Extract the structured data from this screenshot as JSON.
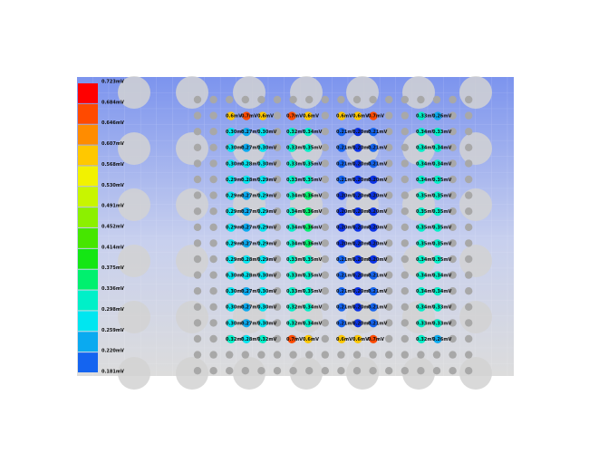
{
  "legend": {
    "ticks": [
      {
        "value": 0.723,
        "label": "0.723mV"
      },
      {
        "value": 0.684,
        "label": "0.684mV"
      },
      {
        "value": 0.646,
        "label": "0.646mV"
      },
      {
        "value": 0.607,
        "label": "0.607mV"
      },
      {
        "value": 0.568,
        "label": "0.568mV"
      },
      {
        "value": 0.53,
        "label": "0.530mV"
      },
      {
        "value": 0.491,
        "label": "0.491mV"
      },
      {
        "value": 0.452,
        "label": "0.452mV"
      },
      {
        "value": 0.414,
        "label": "0.414mV"
      },
      {
        "value": 0.375,
        "label": "0.375mV"
      },
      {
        "value": 0.336,
        "label": "0.336mV"
      },
      {
        "value": 0.298,
        "label": "0.298mV"
      },
      {
        "value": 0.259,
        "label": "0.259mV"
      },
      {
        "value": 0.22,
        "label": "0.220mV"
      },
      {
        "value": 0.181,
        "label": "0.181mV"
      }
    ],
    "colors": [
      "#ff0000",
      "#ff4a00",
      "#ff8c00",
      "#ffc800",
      "#f2f200",
      "#c8f500",
      "#8cf000",
      "#46e600",
      "#14e614",
      "#00f06e",
      "#00f0c8",
      "#00e6f0",
      "#0aaaf0",
      "#1464f0",
      "#0a32e6"
    ]
  },
  "readings": [
    {
      "values": [
        0.62,
        0.7,
        0.62,
        0.7,
        0.62,
        0.6,
        0.62,
        0.7,
        0.33,
        0.26
      ],
      "labels": [
        "0.6mV",
        "0.7mV",
        "0.6mV",
        "0.7mV",
        "0.6mV",
        "0.6mV",
        "0.6mV",
        "0.7mV",
        "0.33mV",
        "0.26mV"
      ]
    },
    {
      "values": [
        0.3,
        0.27,
        0.3,
        0.32,
        0.34,
        0.21,
        0.2,
        0.21,
        0.34,
        0.33
      ],
      "labels": [
        "0.30mV",
        "0.27mV",
        "0.30mV",
        "0.32mV",
        "0.34mV",
        "0.21mV",
        "0.20mV",
        "0.21mV",
        "0.34mV",
        "0.33mV"
      ]
    },
    {
      "values": [
        0.3,
        0.27,
        0.3,
        0.33,
        0.35,
        0.21,
        0.2,
        0.21,
        0.34,
        0.34
      ],
      "labels": [
        "0.30mV",
        "0.27mV",
        "0.30mV",
        "0.33mV",
        "0.35mV",
        "0.21mV",
        "0.20mV",
        "0.21mV",
        "0.34mV",
        "0.34mV"
      ]
    },
    {
      "values": [
        0.3,
        0.28,
        0.3,
        0.33,
        0.35,
        0.21,
        0.2,
        0.21,
        0.34,
        0.34
      ],
      "labels": [
        "0.30mV",
        "0.28mV",
        "0.30mV",
        "0.33mV",
        "0.35mV",
        "0.21mV",
        "0.20mV",
        "0.21mV",
        "0.34mV",
        "0.34mV"
      ]
    },
    {
      "values": [
        0.29,
        0.28,
        0.29,
        0.33,
        0.35,
        0.21,
        0.2,
        0.2,
        0.34,
        0.35
      ],
      "labels": [
        "0.29mV",
        "0.28mV",
        "0.29mV",
        "0.33mV",
        "0.35mV",
        "0.21mV",
        "0.20mV",
        "0.20mV",
        "0.34mV",
        "0.35mV"
      ]
    },
    {
      "values": [
        0.29,
        0.27,
        0.29,
        0.34,
        0.36,
        0.2,
        0.2,
        0.2,
        0.35,
        0.35
      ],
      "labels": [
        "0.29mV",
        "0.27mV",
        "0.29mV",
        "0.34mV",
        "0.36mV",
        "0.20mV",
        "0.20mV",
        "0.20mV",
        "0.35mV",
        "0.35mV"
      ]
    },
    {
      "values": [
        0.29,
        0.27,
        0.29,
        0.34,
        0.36,
        0.2,
        0.2,
        0.2,
        0.35,
        0.35
      ],
      "labels": [
        "0.29mV",
        "0.27mV",
        "0.29mV",
        "0.34mV",
        "0.36mV",
        "0.20mV",
        "0.20mV",
        "0.20mV",
        "0.35mV",
        "0.35mV"
      ]
    },
    {
      "values": [
        0.29,
        0.27,
        0.29,
        0.34,
        0.36,
        0.2,
        0.2,
        0.2,
        0.35,
        0.35
      ],
      "labels": [
        "0.29mV",
        "0.27mV",
        "0.29mV",
        "0.34mV",
        "0.36mV",
        "0.20mV",
        "0.20mV",
        "0.20mV",
        "0.35mV",
        "0.35mV"
      ]
    },
    {
      "values": [
        0.29,
        0.27,
        0.29,
        0.34,
        0.36,
        0.2,
        0.2,
        0.2,
        0.35,
        0.35
      ],
      "labels": [
        "0.29mV",
        "0.27mV",
        "0.29mV",
        "0.34mV",
        "0.36mV",
        "0.20mV",
        "0.20mV",
        "0.20mV",
        "0.35mV",
        "0.35mV"
      ]
    },
    {
      "values": [
        0.29,
        0.28,
        0.29,
        0.33,
        0.35,
        0.21,
        0.2,
        0.2,
        0.34,
        0.35
      ],
      "labels": [
        "0.29mV",
        "0.28mV",
        "0.29mV",
        "0.33mV",
        "0.35mV",
        "0.21mV",
        "0.20mV",
        "0.20mV",
        "0.34mV",
        "0.35mV"
      ]
    },
    {
      "values": [
        0.3,
        0.28,
        0.3,
        0.33,
        0.35,
        0.21,
        0.2,
        0.21,
        0.34,
        0.34
      ],
      "labels": [
        "0.30mV",
        "0.28mV",
        "0.30mV",
        "0.33mV",
        "0.35mV",
        "0.21mV",
        "0.20mV",
        "0.21mV",
        "0.34mV",
        "0.34mV"
      ]
    },
    {
      "values": [
        0.3,
        0.27,
        0.3,
        0.33,
        0.35,
        0.21,
        0.2,
        0.21,
        0.34,
        0.34
      ],
      "labels": [
        "0.30mV",
        "0.27mV",
        "0.30mV",
        "0.33mV",
        "0.35mV",
        "0.21mV",
        "0.20mV",
        "0.21mV",
        "0.34mV",
        "0.34mV"
      ]
    },
    {
      "values": [
        0.3,
        0.27,
        0.3,
        0.32,
        0.34,
        0.21,
        0.2,
        0.21,
        0.34,
        0.33
      ],
      "labels": [
        "0.30mV",
        "0.27mV",
        "0.30mV",
        "0.32mV",
        "0.34mV",
        "0.21mV",
        "0.20mV",
        "0.21mV",
        "0.34mV",
        "0.33mV"
      ]
    },
    {
      "values": [
        0.3,
        0.27,
        0.3,
        0.32,
        0.34,
        0.21,
        0.2,
        0.21,
        0.33,
        0.33
      ],
      "labels": [
        "0.30mV",
        "0.27mV",
        "0.30mV",
        "0.32mV",
        "0.34mV",
        "0.21mV",
        "0.20mV",
        "0.21mV",
        "0.33mV",
        "0.33mV"
      ]
    },
    {
      "values": [
        0.32,
        0.28,
        0.32,
        0.7,
        0.62,
        0.6,
        0.62,
        0.7,
        0.32,
        0.26
      ],
      "labels": [
        "0.32mV",
        "0.28mV",
        "0.32mV",
        "0.7mV",
        "0.6mV",
        "0.6mV",
        "0.6mV",
        "0.7mV",
        "0.32mV",
        "0.26mV"
      ]
    }
  ]
}
